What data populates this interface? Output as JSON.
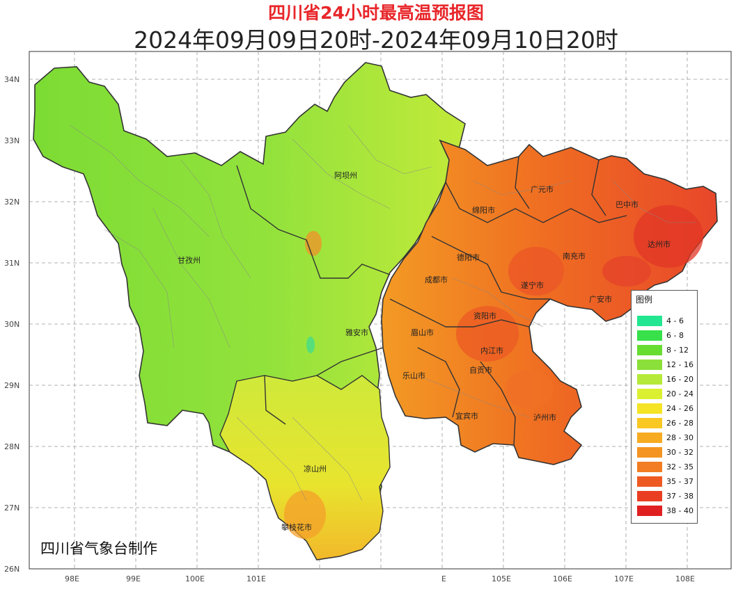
{
  "title": "四川省24小时最高温预报图",
  "subtitle": "2024年09月09日20时-2024年09月10日20时",
  "credit": "四川省气象台制作",
  "axes": {
    "lat_labels": [
      "34N",
      "33N",
      "32N",
      "31N",
      "30N",
      "29N",
      "28N",
      "27N",
      "26N"
    ],
    "lon_labels": [
      "98E",
      "99E",
      "100E",
      "101E",
      "E",
      "105E",
      "106E",
      "107E",
      "108E"
    ]
  },
  "cities": [
    "阿坝州",
    "甘孜州",
    "绵阳市",
    "广元市",
    "巴中市",
    "达州市",
    "德阳市",
    "南充市",
    "成都市",
    "遂宁市",
    "广安市",
    "雅安市",
    "眉山市",
    "资阳市",
    "内江市",
    "乐山市",
    "自贡市",
    "宜宾市",
    "泸州市",
    "凉山州",
    "攀枝花市"
  ],
  "legend": {
    "title": "图例",
    "items": [
      {
        "label": "4 - 6",
        "color": "#22e690"
      },
      {
        "label": "6 - 8",
        "color": "#38e04a"
      },
      {
        "label": "8 - 12",
        "color": "#66dd30"
      },
      {
        "label": "12 - 16",
        "color": "#8be03a"
      },
      {
        "label": "16 - 20",
        "color": "#b5ea3a"
      },
      {
        "label": "20 - 24",
        "color": "#dcf032"
      },
      {
        "label": "24 - 26",
        "color": "#f5e326"
      },
      {
        "label": "26 - 28",
        "color": "#f9c823"
      },
      {
        "label": "28 - 30",
        "color": "#f6ab21"
      },
      {
        "label": "30 - 32",
        "color": "#f49422"
      },
      {
        "label": "32 - 35",
        "color": "#f27d22"
      },
      {
        "label": "35 - 37",
        "color": "#ee5b22"
      },
      {
        "label": "37 - 38",
        "color": "#ea3e22"
      },
      {
        "label": "38 - 40",
        "color": "#e02020"
      }
    ]
  }
}
